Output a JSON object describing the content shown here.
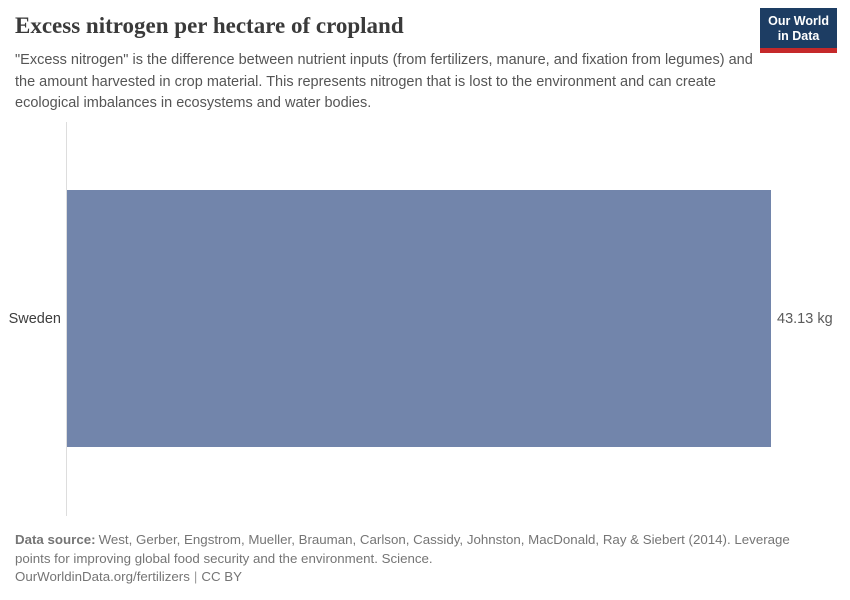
{
  "header": {
    "title": "Excess nitrogen per hectare of cropland",
    "subtitle": "\"Excess nitrogen\" is the difference between nutrient inputs (from fertilizers, manure, and fixation from legumes) and the amount harvested in crop material. This represents nitrogen that is lost to the environment and can create ecological imbalances in ecosystems and water bodies."
  },
  "logo": {
    "line1": "Our World",
    "line2": "in Data",
    "bg_color": "#1d3d63",
    "accent_color": "#c5292a"
  },
  "chart_data": {
    "type": "bar",
    "orientation": "horizontal",
    "title": "Excess nitrogen per hectare of cropland",
    "categories": [
      "Sweden"
    ],
    "values": [
      43.13
    ],
    "value_labels": [
      "43.13 kg"
    ],
    "unit": "kg",
    "xlim": [
      0,
      43.13
    ],
    "grid": false,
    "legend": "none",
    "bar_color": "#7285ab",
    "axis_color": "#dddddd"
  },
  "footer": {
    "datasource_label": "Data source:",
    "datasource_text": "West, Gerber, Engstrom, Mueller, Brauman, Carlson, Cassidy, Johnston, MacDonald, Ray & Siebert (2014). Leverage points for improving global food security and the environment. Science.",
    "link": "OurWorldinData.org/fertilizers",
    "separator": "|",
    "license": "CC BY"
  }
}
